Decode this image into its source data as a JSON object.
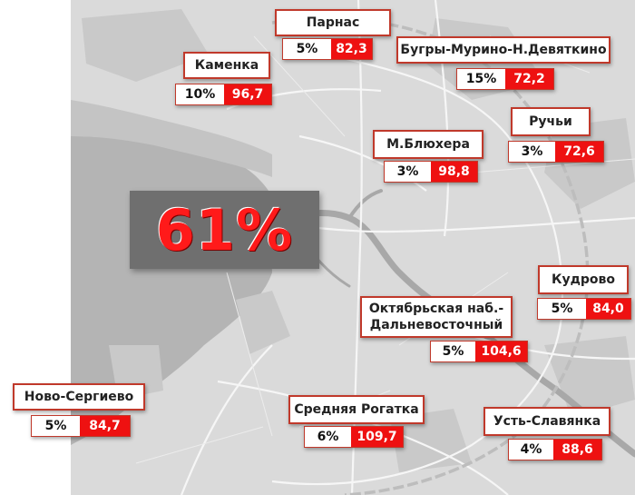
{
  "headline": {
    "value": "61%"
  },
  "colors": {
    "accent": "#ee1111",
    "label_border": "#c0392b",
    "map_land": "#dadada",
    "map_water": "#b4b4b4",
    "headline_box": "#6f6f6f"
  },
  "districts": [
    {
      "name": "Парнас",
      "share": "5%",
      "price": "82,3"
    },
    {
      "name": "Бугры-Мурино-Н.Девяткино",
      "share": "15%",
      "price": "72,2"
    },
    {
      "name": "Каменка",
      "share": "10%",
      "price": "96,7"
    },
    {
      "name": "Ручьи",
      "share": "3%",
      "price": "72,6"
    },
    {
      "name": "М.Блюхера",
      "share": "3%",
      "price": "98,8"
    },
    {
      "name": "Кудрово",
      "share": "5%",
      "price": "84,0"
    },
    {
      "name": "Октябрьская наб.-\nДальневосточный",
      "share": "5%",
      "price": "104,6"
    },
    {
      "name": "Ново-Сергиево",
      "share": "5%",
      "price": "84,7"
    },
    {
      "name": "Средняя Рогатка",
      "share": "6%",
      "price": "109,7"
    },
    {
      "name": "Усть-Славянка",
      "share": "4%",
      "price": "88,6"
    }
  ]
}
